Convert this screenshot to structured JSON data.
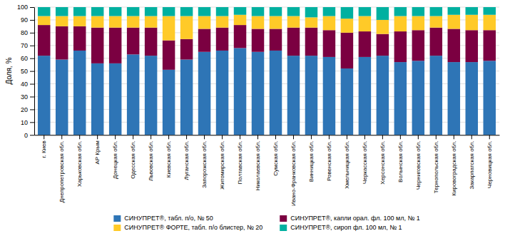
{
  "chart_data": {
    "type": "bar",
    "stacked": true,
    "categories": [
      "г. Киев",
      "Днепропетровская обл.",
      "Харьковская обл.",
      "АР Крым",
      "Донецкая обл.",
      "Одесская обл.",
      "Львовская обл.",
      "Киевская обл.",
      "Луганская обл.",
      "Запорожская обл.",
      "Житомирская обл.",
      "Полтавская обл.",
      "Николаевская обл.",
      "Сумская обл.",
      "Ивано-Франковская обл.",
      "Винницкая обл.",
      "Ровенская обл.",
      "Хмельницкая обл.",
      "Черкасская обл.",
      "Херсонская обл.",
      "Волынская обл.",
      "Черниговская обл.",
      "Тернопольская обл.",
      "Кировоградская обл.",
      "Закарпатская обл.",
      "Черновицкая обл."
    ],
    "series": [
      {
        "name": "СИНУПРЕТ®, табл. п/о, № 50",
        "color": "#2E75B6",
        "values": [
          62,
          59,
          66,
          56,
          56,
          63,
          62,
          51,
          59,
          65,
          66,
          68,
          65,
          66,
          62,
          62,
          61,
          52,
          61,
          62,
          57,
          58,
          62,
          57,
          57,
          58
        ]
      },
      {
        "name": "СИНУПРЕТ®, капли орал. фл. 100 мл, № 1",
        "color": "#7B0041",
        "values": [
          24,
          26,
          19,
          28,
          28,
          21,
          22,
          23,
          16,
          18,
          18,
          18,
          18,
          17,
          22,
          22,
          21,
          28,
          20,
          17,
          24,
          24,
          22,
          26,
          25,
          24
        ]
      },
      {
        "name": "СИНУПРЕТ® ФОРТЕ, табл. п/о блистер, № 20",
        "color": "#FFCA28",
        "values": [
          7,
          8,
          8,
          9,
          9,
          9,
          9,
          19,
          18,
          10,
          9,
          8,
          10,
          10,
          9,
          8,
          11,
          11,
          12,
          11,
          12,
          11,
          9,
          11,
          12,
          12
        ]
      },
      {
        "name": "СИНУПРЕТ®, сироп фл. 100 мл, № 1",
        "color": "#00B0A0",
        "values": [
          7,
          7,
          7,
          7,
          7,
          7,
          7,
          7,
          7,
          7,
          7,
          6,
          7,
          7,
          7,
          8,
          7,
          9,
          7,
          10,
          7,
          7,
          7,
          6,
          6,
          6
        ]
      }
    ],
    "ylabel": "Доля, %",
    "ylim": [
      0,
      100
    ],
    "yticks": [
      0,
      10,
      20,
      30,
      40,
      50,
      60,
      70,
      80,
      90,
      100
    ],
    "grid": true,
    "legend": "bottom"
  }
}
